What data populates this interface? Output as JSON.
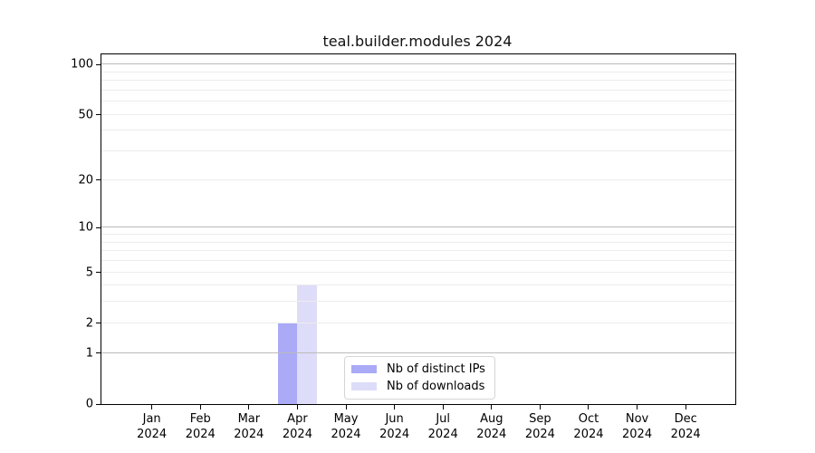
{
  "title": "teal.builder.modules 2024",
  "chart_data": {
    "type": "bar",
    "title": "teal.builder.modules 2024",
    "categories": [
      "Jan",
      "Feb",
      "Mar",
      "Apr",
      "May",
      "Jun",
      "Jul",
      "Aug",
      "Sep",
      "Oct",
      "Nov",
      "Dec"
    ],
    "category_year": "2024",
    "series": [
      {
        "name": "Nb of distinct IPs",
        "color": "#aaaaf7",
        "values": [
          0,
          0,
          0,
          2,
          0,
          0,
          0,
          0,
          0,
          0,
          0,
          0
        ]
      },
      {
        "name": "Nb of downloads",
        "color": "#ddddf9",
        "values": [
          0,
          0,
          0,
          4,
          0,
          0,
          0,
          0,
          0,
          0,
          0,
          0
        ]
      }
    ],
    "yscale": "log1p",
    "ylim": [
      0,
      115
    ],
    "yticks": [
      0,
      1,
      2,
      5,
      10,
      20,
      50,
      100
    ],
    "grid": true,
    "grid_minor": [
      2,
      3,
      4,
      5,
      6,
      7,
      8,
      9,
      20,
      30,
      40,
      50,
      60,
      70,
      80,
      90
    ],
    "grid_major": [
      1,
      10,
      100
    ],
    "legend_position": "lower center",
    "xlabel": "",
    "ylabel": ""
  },
  "legend": {
    "items": [
      {
        "label": "Nb of distinct IPs",
        "color": "#aaaaf7"
      },
      {
        "label": "Nb of downloads",
        "color": "#ddddf9"
      }
    ]
  },
  "colors": {
    "background": "#ffffff",
    "spine": "#000000",
    "grid_minor": "#ececec",
    "grid_major": "#bbbbbb",
    "text": "#000000",
    "legend_border": "#d5d5d5"
  }
}
